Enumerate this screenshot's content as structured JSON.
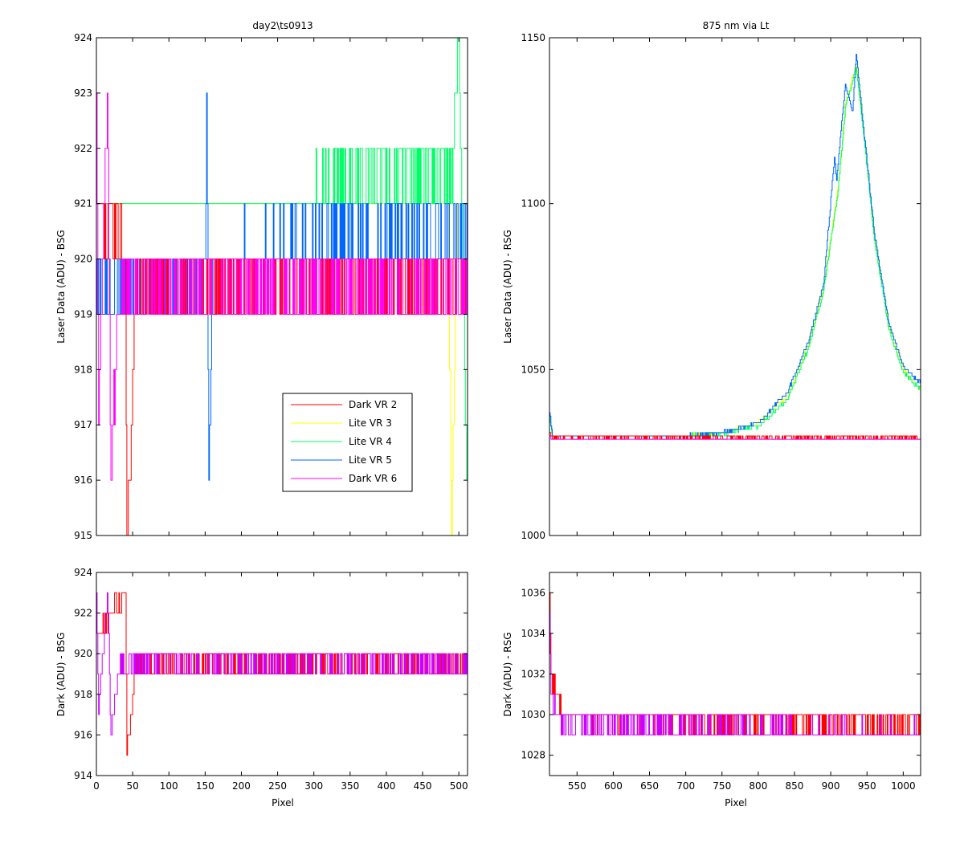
{
  "figure": {
    "background": "#ffffff"
  },
  "chart_data": [
    {
      "id": "top-left",
      "type": "line",
      "title": "day2\\ts0913",
      "xlabel": "",
      "ylabel": "Laser Data (ADU) - BSG",
      "xlim": [
        0,
        512
      ],
      "ylim": [
        915,
        924
      ],
      "xticks": [],
      "yticks": [
        915,
        916,
        917,
        918,
        919,
        920,
        921,
        922,
        923,
        924
      ],
      "legend_position": "lower-right",
      "series": [
        {
          "name": "Dark VR 2",
          "color": "#ff0000",
          "noise": "binary",
          "values": [
            [
              0,
              921
            ],
            [
              6,
              921
            ],
            [
              40,
              920
            ],
            [
              42,
              915
            ],
            [
              55,
              919.5
            ],
            [
              100,
              919.5
            ],
            [
              511,
              919.5
            ]
          ]
        },
        {
          "name": "Lite VR 3",
          "color": "#ffff00",
          "noise": "binary",
          "values": [
            [
              0,
              921
            ],
            [
              485,
              921
            ],
            [
              490,
              915
            ],
            [
              498,
              921
            ],
            [
              511,
              921
            ]
          ]
        },
        {
          "name": "Lite VR 4",
          "color": "#00ff66",
          "noise": "binary",
          "values": [
            [
              0,
              921
            ],
            [
              300,
              921
            ],
            [
              320,
              921.5
            ],
            [
              490,
              921.5
            ],
            [
              500,
              924
            ],
            [
              511,
              916
            ]
          ]
        },
        {
          "name": "Lite VR 5",
          "color": "#0066ff",
          "noise": "binary",
          "values": [
            [
              0,
              919.5
            ],
            [
              150,
              919.5
            ],
            [
              152,
              923
            ],
            [
              155,
              916
            ],
            [
              160,
              920
            ],
            [
              511,
              920.5
            ]
          ]
        },
        {
          "name": "Dark VR 6",
          "color": "#ff00ff",
          "noise": "binary",
          "values": [
            [
              0,
              923
            ],
            [
              3,
              917
            ],
            [
              15,
              923
            ],
            [
              20,
              916
            ],
            [
              30,
              919.5
            ],
            [
              511,
              919.5
            ]
          ]
        }
      ]
    },
    {
      "id": "top-right",
      "type": "line",
      "title": "875 nm via Lt",
      "xlabel": "",
      "ylabel": "Laser Data (ADU) - RSG",
      "xlim": [
        512,
        1024
      ],
      "ylim": [
        1000,
        1150
      ],
      "xticks": [],
      "yticks": [
        1000,
        1050,
        1100,
        1150
      ],
      "series": [
        {
          "name": "Lite VR 3",
          "color": "#ffff00",
          "noise": "small",
          "values": [
            [
              512,
              1036
            ],
            [
              516,
              1030
            ],
            [
              700,
              1030
            ],
            [
              750,
              1031
            ],
            [
              800,
              1034
            ],
            [
              840,
              1042
            ],
            [
              870,
              1058
            ],
            [
              890,
              1075
            ],
            [
              910,
              1105
            ],
            [
              920,
              1130
            ],
            [
              935,
              1142
            ],
            [
              945,
              1122
            ],
            [
              960,
              1090
            ],
            [
              980,
              1063
            ],
            [
              1000,
              1050
            ],
            [
              1024,
              1044
            ]
          ]
        },
        {
          "name": "Lite VR 4",
          "color": "#00ff66",
          "noise": "small",
          "values": [
            [
              512,
              1036
            ],
            [
              516,
              1030
            ],
            [
              700,
              1030
            ],
            [
              750,
              1030.5
            ],
            [
              800,
              1033
            ],
            [
              840,
              1041
            ],
            [
              870,
              1057
            ],
            [
              890,
              1074
            ],
            [
              910,
              1104
            ],
            [
              920,
              1129
            ],
            [
              935,
              1141
            ],
            [
              945,
              1121
            ],
            [
              960,
              1089
            ],
            [
              980,
              1062
            ],
            [
              1000,
              1049
            ],
            [
              1024,
              1044
            ]
          ]
        },
        {
          "name": "Lite VR 5",
          "color": "#0066ff",
          "noise": "small",
          "values": [
            [
              512,
              1037
            ],
            [
              516,
              1030
            ],
            [
              700,
              1030
            ],
            [
              750,
              1031
            ],
            [
              800,
              1034
            ],
            [
              840,
              1043
            ],
            [
              870,
              1059
            ],
            [
              890,
              1076
            ],
            [
              905,
              1114
            ],
            [
              908,
              1107
            ],
            [
              915,
              1125
            ],
            [
              920,
              1136
            ],
            [
              930,
              1128
            ],
            [
              935,
              1145
            ],
            [
              945,
              1123
            ],
            [
              960,
              1091
            ],
            [
              980,
              1064
            ],
            [
              1000,
              1051
            ],
            [
              1024,
              1046
            ]
          ]
        },
        {
          "name": "Dark VR 2",
          "color": "#ff0000",
          "noise": "binary",
          "values": [
            [
              512,
              1031
            ],
            [
              516,
              1029.5
            ],
            [
              1024,
              1029.5
            ]
          ]
        },
        {
          "name": "Dark VR 6",
          "color": "#ff00ff",
          "noise": "binary",
          "values": [
            [
              512,
              1030
            ],
            [
              516,
              1029
            ],
            [
              1024,
              1029
            ]
          ]
        }
      ]
    },
    {
      "id": "bottom-left",
      "type": "line",
      "title": "",
      "xlabel": "Pixel",
      "ylabel": "Dark (ADU) - BSG",
      "xlim": [
        0,
        512
      ],
      "ylim": [
        914,
        924
      ],
      "xticks": [
        0,
        50,
        100,
        150,
        200,
        250,
        300,
        350,
        400,
        450,
        500
      ],
      "yticks": [
        914,
        916,
        918,
        920,
        922,
        924
      ],
      "series": [
        {
          "name": "Dark VR 2",
          "color": "#ff0000",
          "noise": "binary",
          "values": [
            [
              0,
              921
            ],
            [
              5,
              921
            ],
            [
              40,
              923
            ],
            [
              42,
              915
            ],
            [
              55,
              919.5
            ],
            [
              100,
              919.5
            ],
            [
              511,
              919.5
            ]
          ]
        },
        {
          "name": "Dark VR 6",
          "color": "#cc00ff",
          "noise": "binary",
          "values": [
            [
              0,
              923
            ],
            [
              3,
              917
            ],
            [
              15,
              923
            ],
            [
              20,
              916
            ],
            [
              30,
              919.5
            ],
            [
              511,
              919.5
            ]
          ]
        }
      ]
    },
    {
      "id": "bottom-right",
      "type": "line",
      "title": "",
      "xlabel": "Pixel",
      "ylabel": "Dark (ADU) - RSG",
      "xlim": [
        512,
        1024
      ],
      "ylim": [
        1027,
        1037
      ],
      "xticks": [
        550,
        600,
        650,
        700,
        750,
        800,
        850,
        900,
        950,
        1000
      ],
      "yticks": [
        1028,
        1030,
        1032,
        1034,
        1036
      ],
      "series": [
        {
          "name": "Dark VR 2",
          "color": "#ff0000",
          "noise": "binary",
          "values": [
            [
              512,
              1036
            ],
            [
              514,
              1032
            ],
            [
              520,
              1031
            ],
            [
              530,
              1030
            ],
            [
              1024,
              1029.5
            ]
          ]
        },
        {
          "name": "Dark VR 6",
          "color": "#cc00ff",
          "noise": "binary",
          "values": [
            [
              512,
              1035
            ],
            [
              514,
              1031
            ],
            [
              520,
              1030
            ],
            [
              530,
              1029.5
            ],
            [
              1024,
              1029
            ]
          ]
        }
      ]
    }
  ]
}
